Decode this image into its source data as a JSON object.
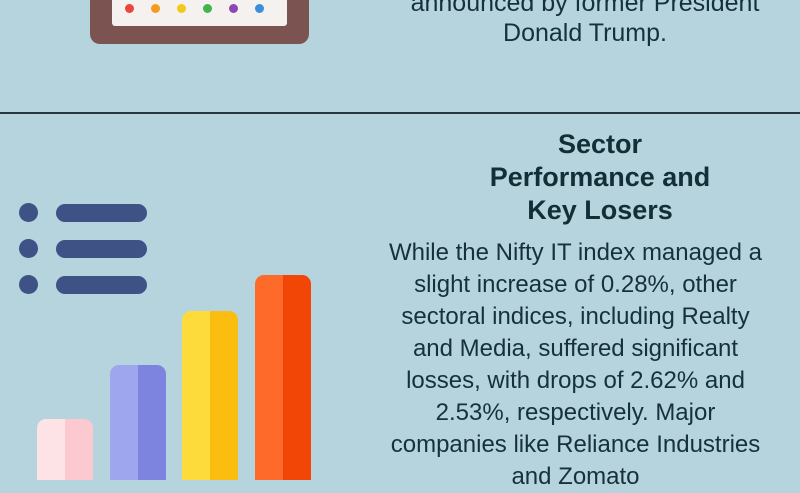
{
  "top_caption_lines": [
    "announced by former President",
    "Donald Trump."
  ],
  "section": {
    "title_lines": [
      "Sector",
      "Performance and",
      "Key Losers"
    ],
    "body_lines": [
      "While the Nifty IT index managed a",
      "slight increase of 0.28%, other",
      "sectoral indices, including Realty",
      "and Media, suffered significant",
      "losses, with drops of 2.62% and",
      "2.53%, respectively. Major",
      "companies like Reliance Industries",
      "and Zomato"
    ]
  },
  "colors": {
    "background": "#b5d4dd",
    "divider": "#25393f",
    "list_icon": "#3e5286",
    "frame": "#7b5451",
    "bar_pink": [
      "#fde3e6",
      "#fcc9d0"
    ],
    "bar_periwinkle": [
      "#9ea6ee",
      "#7c84df"
    ],
    "bar_yellow": [
      "#fddb3a",
      "#fbbd0f"
    ],
    "bar_orange": [
      "#fe6a2a",
      "#f24607"
    ]
  },
  "icons": {
    "top_illustration": "whiteboard-icon",
    "list_illustration": "list-icon",
    "bar_illustration": "bar-chart-icon"
  },
  "illustration_bar_relative_heights": [
    0.29,
    0.55,
    0.8,
    1.0
  ]
}
